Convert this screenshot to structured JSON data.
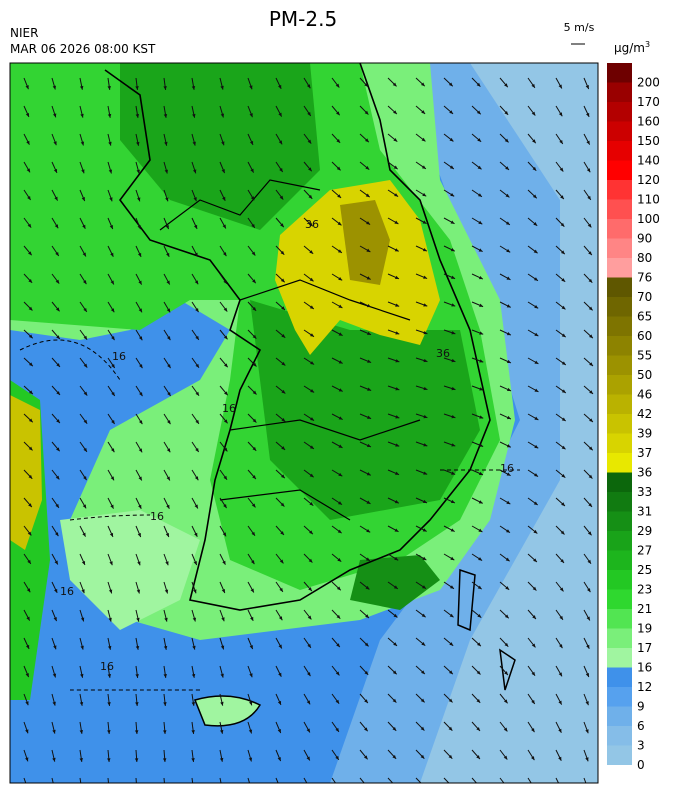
{
  "header": {
    "title": "PM-2.5",
    "agency": "NIER",
    "datetime": "MAR 06 2026 08:00 KST",
    "wind_scale": "5 m/s"
  },
  "legend": {
    "unit": "μg/m",
    "unit_power": "3",
    "levels": [
      0,
      3,
      6,
      9,
      12,
      16,
      17,
      19,
      21,
      23,
      25,
      27,
      29,
      31,
      33,
      36,
      37,
      39,
      42,
      46,
      50,
      55,
      60,
      65,
      70,
      76,
      80,
      90,
      100,
      110,
      120,
      140,
      150,
      160,
      170,
      200
    ],
    "colors": [
      "#93c6e6",
      "#85bde8",
      "#6fb0ea",
      "#56a1ee",
      "#3f91ea",
      "#a0f5a0",
      "#7aef7a",
      "#52e552",
      "#2fd82f",
      "#23c823",
      "#1db51d",
      "#19a319",
      "#158f15",
      "#117b11",
      "#0c670c",
      "#e8e800",
      "#d8d400",
      "#c9c300",
      "#bab200",
      "#aba200",
      "#9c9200",
      "#8d8300",
      "#7e7400",
      "#6f6600",
      "#5f5700",
      "#ff9e9e",
      "#ff8585",
      "#ff6b6b",
      "#ff5050",
      "#ff3333",
      "#ff0000",
      "#e60000",
      "#cc0000",
      "#b30000",
      "#990000",
      "#6e0000"
    ]
  },
  "map": {
    "contour_labels": [
      16,
      16,
      16,
      16,
      16,
      16,
      36,
      36
    ]
  }
}
